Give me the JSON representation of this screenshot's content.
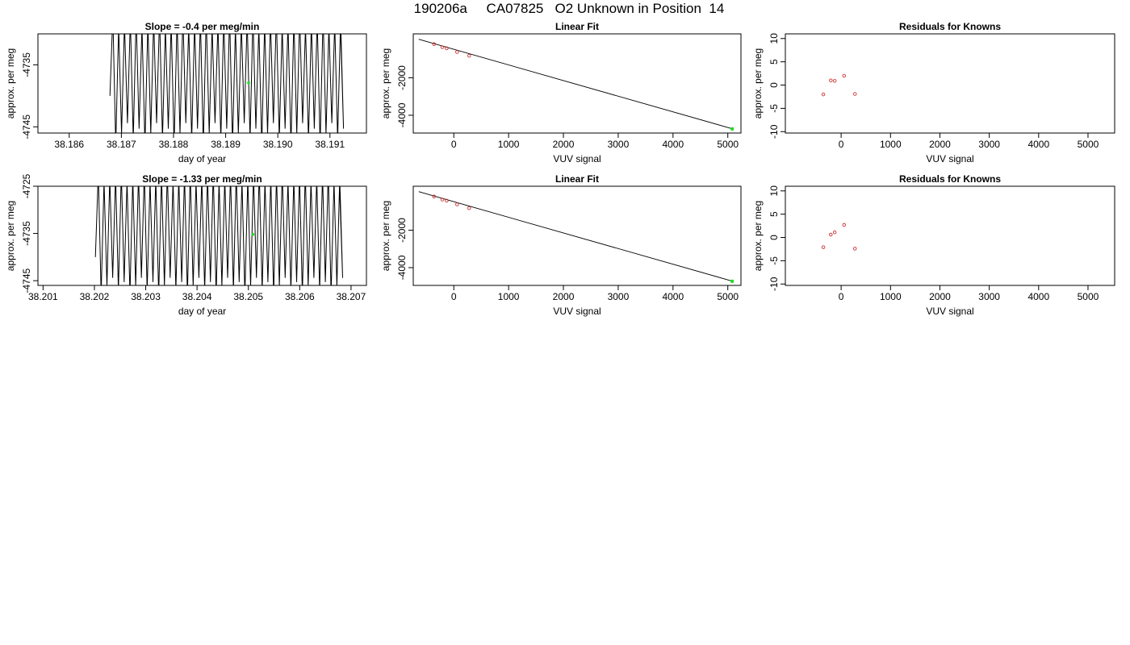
{
  "page_title": "190206a     CA07825   O2 Unknown in Position  14",
  "colors": {
    "trace": "#000000",
    "unknown_point": "#22dd22",
    "known_point": "#cc3333",
    "axis": "#000000"
  },
  "chart_data": [
    {
      "type": "line",
      "title": "Slope =  -0.4  per meg/min",
      "xlabel": "day of year",
      "ylabel": "approx. per meg",
      "xlim": [
        38.1854,
        38.1917
      ],
      "ylim": [
        -4746,
        -4730
      ],
      "xticks": [
        "38.186",
        "38.187",
        "38.188",
        "38.189",
        "38.190",
        "38.191"
      ],
      "yticks": [
        "-4735",
        "-4745"
      ],
      "trace": {
        "x_start": 38.18678,
        "x_end": 38.1912,
        "period": 0.000112,
        "low": -4746,
        "high": -4730,
        "open_jitter": 7
      },
      "highlight": {
        "x": 38.18944,
        "y": -4737.9
      }
    },
    {
      "type": "scatter",
      "title": "Linear Fit",
      "xlabel": "VUV signal",
      "ylabel": "approx. per meg",
      "xlim": [
        -740,
        5240
      ],
      "ylim": [
        -4950,
        350
      ],
      "xticks": [
        "0",
        "1000",
        "2000",
        "3000",
        "4000",
        "5000"
      ],
      "yticks": [
        "-2000",
        "-4000"
      ],
      "fit_line": {
        "x": [
          -640,
          5080
        ],
        "y": [
          60,
          -4720
        ]
      },
      "knowns": {
        "x": [
          -360,
          -210,
          -130,
          60,
          280
        ],
        "y": [
          -200,
          -360,
          -420,
          -620,
          -820
        ]
      },
      "unknown": {
        "x": 5080,
        "y": -4730
      }
    },
    {
      "type": "scatter",
      "title": "Residuals for Knowns",
      "xlabel": "VUV signal",
      "ylabel": "approx. per meg",
      "xlim": [
        -1130,
        5540
      ],
      "ylim": [
        -10.3,
        11
      ],
      "xticks": [
        "0",
        "1000",
        "2000",
        "3000",
        "4000",
        "5000"
      ],
      "yticks": [
        "-10",
        "-5",
        "0",
        "5",
        "10"
      ],
      "knowns": {
        "x": [
          -360,
          -210,
          -130,
          60,
          280
        ],
        "y": [
          -2.0,
          1.0,
          0.9,
          2.0,
          -1.9
        ]
      }
    },
    {
      "type": "line",
      "title": "Slope =  -1.33  per meg/min",
      "xlabel": "day of year",
      "ylabel": "approx. per meg",
      "xlim": [
        38.2009,
        38.2073
      ],
      "ylim": [
        -4746,
        -4725
      ],
      "xticks": [
        "38.201",
        "38.202",
        "38.203",
        "38.204",
        "38.205",
        "38.206",
        "38.207"
      ],
      "yticks": [
        "-4725",
        "-4735",
        "-4745"
      ],
      "trace": {
        "x_start": 38.20202,
        "x_end": 38.20677,
        "period": 0.000112,
        "low": -4746,
        "high": -4725,
        "open_jitter": 7
      },
      "highlight": {
        "x": 38.20509,
        "y": -4735.2
      }
    },
    {
      "type": "scatter",
      "title": "Linear Fit",
      "xlabel": "VUV signal",
      "ylabel": "approx. per meg",
      "xlim": [
        -740,
        5240
      ],
      "ylim": [
        -4950,
        350
      ],
      "xticks": [
        "0",
        "1000",
        "2000",
        "3000",
        "4000",
        "5000"
      ],
      "yticks": [
        "-2000",
        "-4000"
      ],
      "fit_line": {
        "x": [
          -640,
          5080
        ],
        "y": [
          60,
          -4720
        ]
      },
      "knowns": {
        "x": [
          -360,
          -210,
          -130,
          60,
          280
        ],
        "y": [
          -200,
          -360,
          -420,
          -620,
          -820
        ]
      },
      "unknown": {
        "x": 5080,
        "y": -4730
      }
    },
    {
      "type": "scatter",
      "title": "Residuals for Knowns",
      "xlabel": "VUV signal",
      "ylabel": "approx. per meg",
      "xlim": [
        -1130,
        5540
      ],
      "ylim": [
        -10.3,
        11
      ],
      "xticks": [
        "0",
        "1000",
        "2000",
        "3000",
        "4000",
        "5000"
      ],
      "yticks": [
        "-10",
        "-5",
        "0",
        "5",
        "10"
      ],
      "knowns": {
        "x": [
          -360,
          -210,
          -130,
          60,
          280
        ],
        "y": [
          -2.1,
          0.6,
          1.1,
          2.7,
          -2.4
        ]
      }
    }
  ]
}
